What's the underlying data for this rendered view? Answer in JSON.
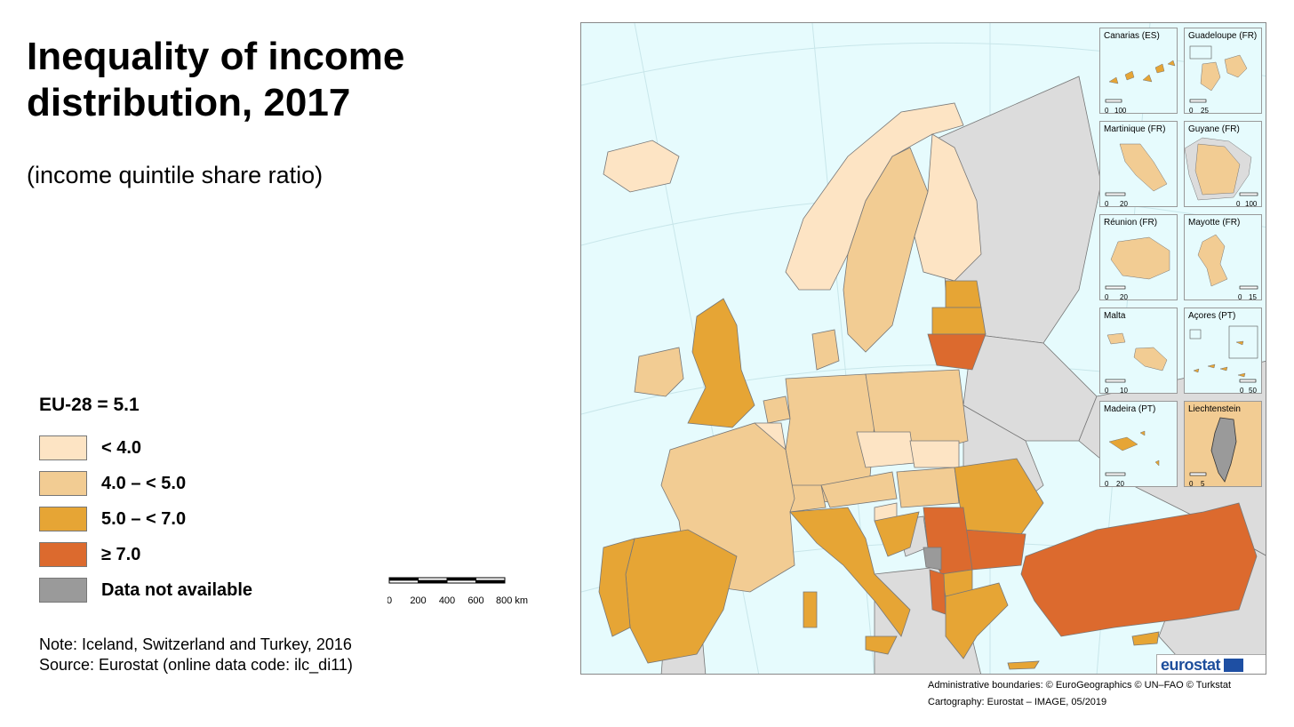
{
  "title": "Inequality of income distribution, 2017",
  "subtitle": "(income quintile share ratio)",
  "legend": {
    "heading": "EU-28 = 5.1",
    "items": [
      {
        "label": "< 4.0",
        "color": "#fde4c4"
      },
      {
        "label": "4.0 – < 5.0",
        "color": "#f2cc93"
      },
      {
        "label": "5.0 – < 7.0",
        "color": "#e6a535"
      },
      {
        "label": "≥ 7.0",
        "color": "#dc6a2e"
      },
      {
        "label": "Data not available",
        "color": "#9a9a9a"
      }
    ]
  },
  "scalebar": {
    "ticks": [
      "0",
      "200",
      "400",
      "600",
      "800 km"
    ]
  },
  "notes": {
    "note": "Note: Iceland, Switzerland and Turkey, 2016",
    "source": "Source: Eurostat (online data code: ilc_di11)"
  },
  "insets": [
    {
      "label": "Canarias (ES)",
      "scale": [
        "0",
        "100"
      ]
    },
    {
      "label": "Guadeloupe (FR)",
      "scale": [
        "0",
        "25"
      ]
    },
    {
      "label": "Martinique (FR)",
      "scale": [
        "0",
        "20"
      ]
    },
    {
      "label": "Guyane (FR)",
      "scale": [
        "0",
        "100"
      ]
    },
    {
      "label": "Réunion (FR)",
      "scale": [
        "0",
        "20"
      ]
    },
    {
      "label": "Mayotte (FR)",
      "scale": [
        "0",
        "15"
      ]
    },
    {
      "label": "Malta",
      "scale": [
        "0",
        "10"
      ]
    },
    {
      "label": "Açores (PT)",
      "scale": [
        "0",
        "50"
      ]
    },
    {
      "label": "Madeira (PT)",
      "scale": [
        "0",
        "20"
      ]
    },
    {
      "label": "Liechtenstein",
      "scale": [
        "0",
        "5"
      ]
    }
  ],
  "logo": "eurostat",
  "credits": {
    "boundaries": "Administrative boundaries: © EuroGeographics © UN–FAO © Turkstat",
    "cartography": "Cartography: Eurostat – IMAGE, 05/2019"
  },
  "colors": {
    "sea": "#e6fbfd",
    "non_eu": "#dcdcdc",
    "class1": "#fde4c4",
    "class2": "#f2cc93",
    "class3": "#e6a535",
    "class4": "#dc6a2e",
    "na": "#9a9a9a"
  }
}
